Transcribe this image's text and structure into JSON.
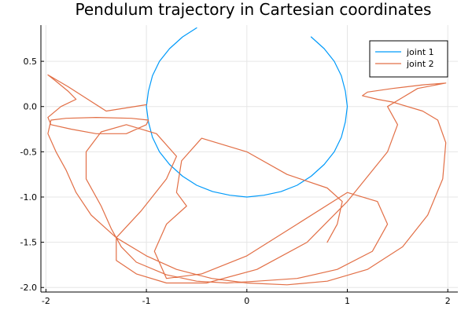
{
  "chart_data": {
    "type": "line",
    "title": "Pendulum trajectory in Cartesian coordinates",
    "xlabel": "",
    "ylabel": "",
    "xlim": [
      -2.05,
      2.1
    ],
    "ylim": [
      -2.05,
      0.9
    ],
    "xticks": [
      -2,
      -1,
      0,
      1,
      2
    ],
    "xtick_labels": [
      "-2",
      "-1",
      "0",
      "1",
      "2"
    ],
    "yticks": [
      0.5,
      0.0,
      -0.5,
      -1.0,
      -1.5,
      -2.0
    ],
    "ytick_labels": [
      "0.5",
      "0.0",
      "-0.5",
      "-1.0",
      "-1.5",
      "-2.0"
    ],
    "grid": true,
    "legend_position": "top-right",
    "series": [
      {
        "name": "joint 1",
        "color": "#009AFA",
        "x": [
          -0.5,
          -0.64,
          -0.77,
          -0.87,
          -0.94,
          -0.98,
          -1.0,
          -0.98,
          -0.94,
          -0.87,
          -0.77,
          -0.64,
          -0.5,
          -0.34,
          -0.17,
          0.0,
          0.17,
          0.34,
          0.5,
          0.64,
          0.77,
          0.87,
          0.94,
          0.98,
          1.0,
          0.98,
          0.94,
          0.87,
          0.77,
          0.64
        ],
        "y": [
          0.87,
          0.77,
          0.64,
          0.5,
          0.34,
          0.17,
          0.0,
          -0.17,
          -0.34,
          -0.5,
          -0.64,
          -0.77,
          -0.87,
          -0.94,
          -0.98,
          -1.0,
          -0.98,
          -0.94,
          -0.87,
          -0.77,
          -0.64,
          -0.5,
          -0.34,
          -0.17,
          0.0,
          0.17,
          0.34,
          0.5,
          0.64,
          0.77
        ]
      },
      {
        "name": "joint 2",
        "color": "#E26F46",
        "x": [
          -1.0,
          -1.4,
          -1.78,
          -1.98,
          -1.9,
          -1.78,
          -1.7,
          -1.85,
          -1.98,
          -1.95,
          -1.75,
          -1.5,
          -1.2,
          -1.0,
          -0.98,
          -1.15,
          -1.5,
          -1.8,
          -1.95,
          -1.98,
          -1.9,
          -1.8,
          -1.7,
          -1.55,
          -1.3,
          -1.0,
          -0.7,
          -0.35,
          0.0,
          0.4,
          0.8,
          1.2,
          1.55,
          1.8,
          1.95,
          1.98,
          1.9,
          1.75,
          1.45,
          1.3,
          1.15,
          1.2,
          1.45,
          1.75,
          1.98,
          1.7,
          1.4,
          1.5,
          1.4,
          1.0,
          0.6,
          0.1,
          -0.4,
          -0.8,
          -1.1,
          -1.3,
          -1.3,
          -1.05,
          -0.8,
          -0.7,
          -0.9,
          -1.2,
          -1.45,
          -1.6,
          -1.6,
          -1.45,
          -1.35,
          -1.25,
          -1.1,
          -0.8,
          -0.5,
          -0.2,
          0.1,
          0.5,
          0.9,
          1.25,
          1.4,
          1.3,
          1.0,
          0.5,
          0.0,
          -0.45,
          -0.8,
          -0.92,
          -0.8,
          -0.6,
          -0.7,
          -0.65,
          -0.45,
          0.0,
          0.4,
          0.8,
          0.95,
          0.9,
          0.8
        ],
        "y": [
          0.02,
          -0.05,
          0.22,
          0.35,
          0.28,
          0.17,
          0.08,
          0.0,
          -0.12,
          -0.2,
          -0.25,
          -0.3,
          -0.3,
          -0.2,
          -0.15,
          -0.13,
          -0.12,
          -0.13,
          -0.15,
          -0.3,
          -0.5,
          -0.7,
          -0.95,
          -1.2,
          -1.45,
          -1.65,
          -1.8,
          -1.9,
          -1.95,
          -1.97,
          -1.93,
          -1.8,
          -1.55,
          -1.2,
          -0.8,
          -0.4,
          -0.15,
          -0.05,
          0.05,
          0.08,
          0.12,
          0.16,
          0.2,
          0.24,
          0.26,
          0.2,
          0.0,
          -0.2,
          -0.5,
          -1.05,
          -1.5,
          -1.8,
          -1.95,
          -1.95,
          -1.85,
          -1.7,
          -1.45,
          -1.15,
          -0.8,
          -0.55,
          -0.3,
          -0.2,
          -0.28,
          -0.5,
          -0.8,
          -1.1,
          -1.35,
          -1.55,
          -1.72,
          -1.86,
          -1.93,
          -1.95,
          -1.93,
          -1.9,
          -1.8,
          -1.6,
          -1.3,
          -1.05,
          -0.95,
          -1.3,
          -1.65,
          -1.85,
          -1.9,
          -1.6,
          -1.3,
          -1.1,
          -0.95,
          -0.6,
          -0.35,
          -0.5,
          -0.75,
          -0.9,
          -1.05,
          -1.3,
          -1.5
        ]
      }
    ]
  }
}
